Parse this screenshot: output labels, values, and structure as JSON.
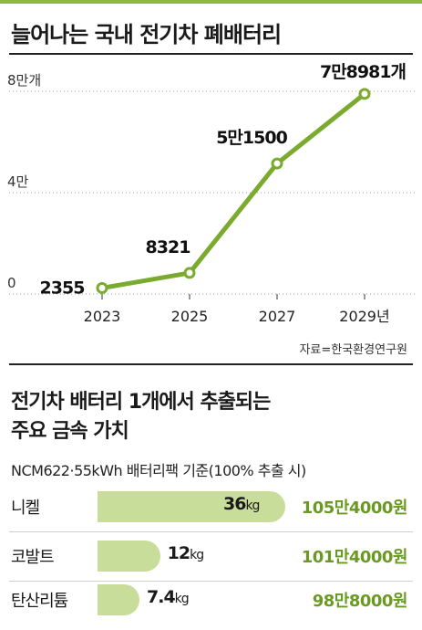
{
  "chart_data": [
    {
      "type": "line",
      "title": "늘어나는 국내 전기차 폐배터리",
      "ytick_labels": [
        "0",
        "4만",
        "8만개"
      ],
      "ylim": [
        0,
        80000
      ],
      "x": [
        "2023",
        "2025",
        "2027",
        "2029년"
      ],
      "values": [
        2355,
        8321,
        51500,
        78981
      ],
      "data_labels": [
        "2355",
        "8321",
        "5만1500",
        "7만8981개"
      ],
      "source": "자료=한국환경연구원",
      "color": "#7aaa2e",
      "grid": false
    },
    {
      "type": "bar",
      "title": "전기차 배터리 1개에서 추출되는 주요 금속 가치",
      "title_lines": [
        "전기차 배터리 1개에서 추출되는",
        "주요 금속 가치"
      ],
      "subtitle": "NCM622·55kWh 배터리팩 기준(100% 추출 시)",
      "categories": [
        "니켈",
        "코발트",
        "탄산리튬"
      ],
      "values": [
        36,
        12,
        7.4
      ],
      "value_labels": [
        "36",
        "12",
        "7.4"
      ],
      "unit": "kg",
      "values_won": [
        "105만4000원",
        "101만4000원",
        "98만8000원"
      ],
      "bar_color": "#c8dd9a",
      "won_color": "#6a9a22"
    }
  ]
}
